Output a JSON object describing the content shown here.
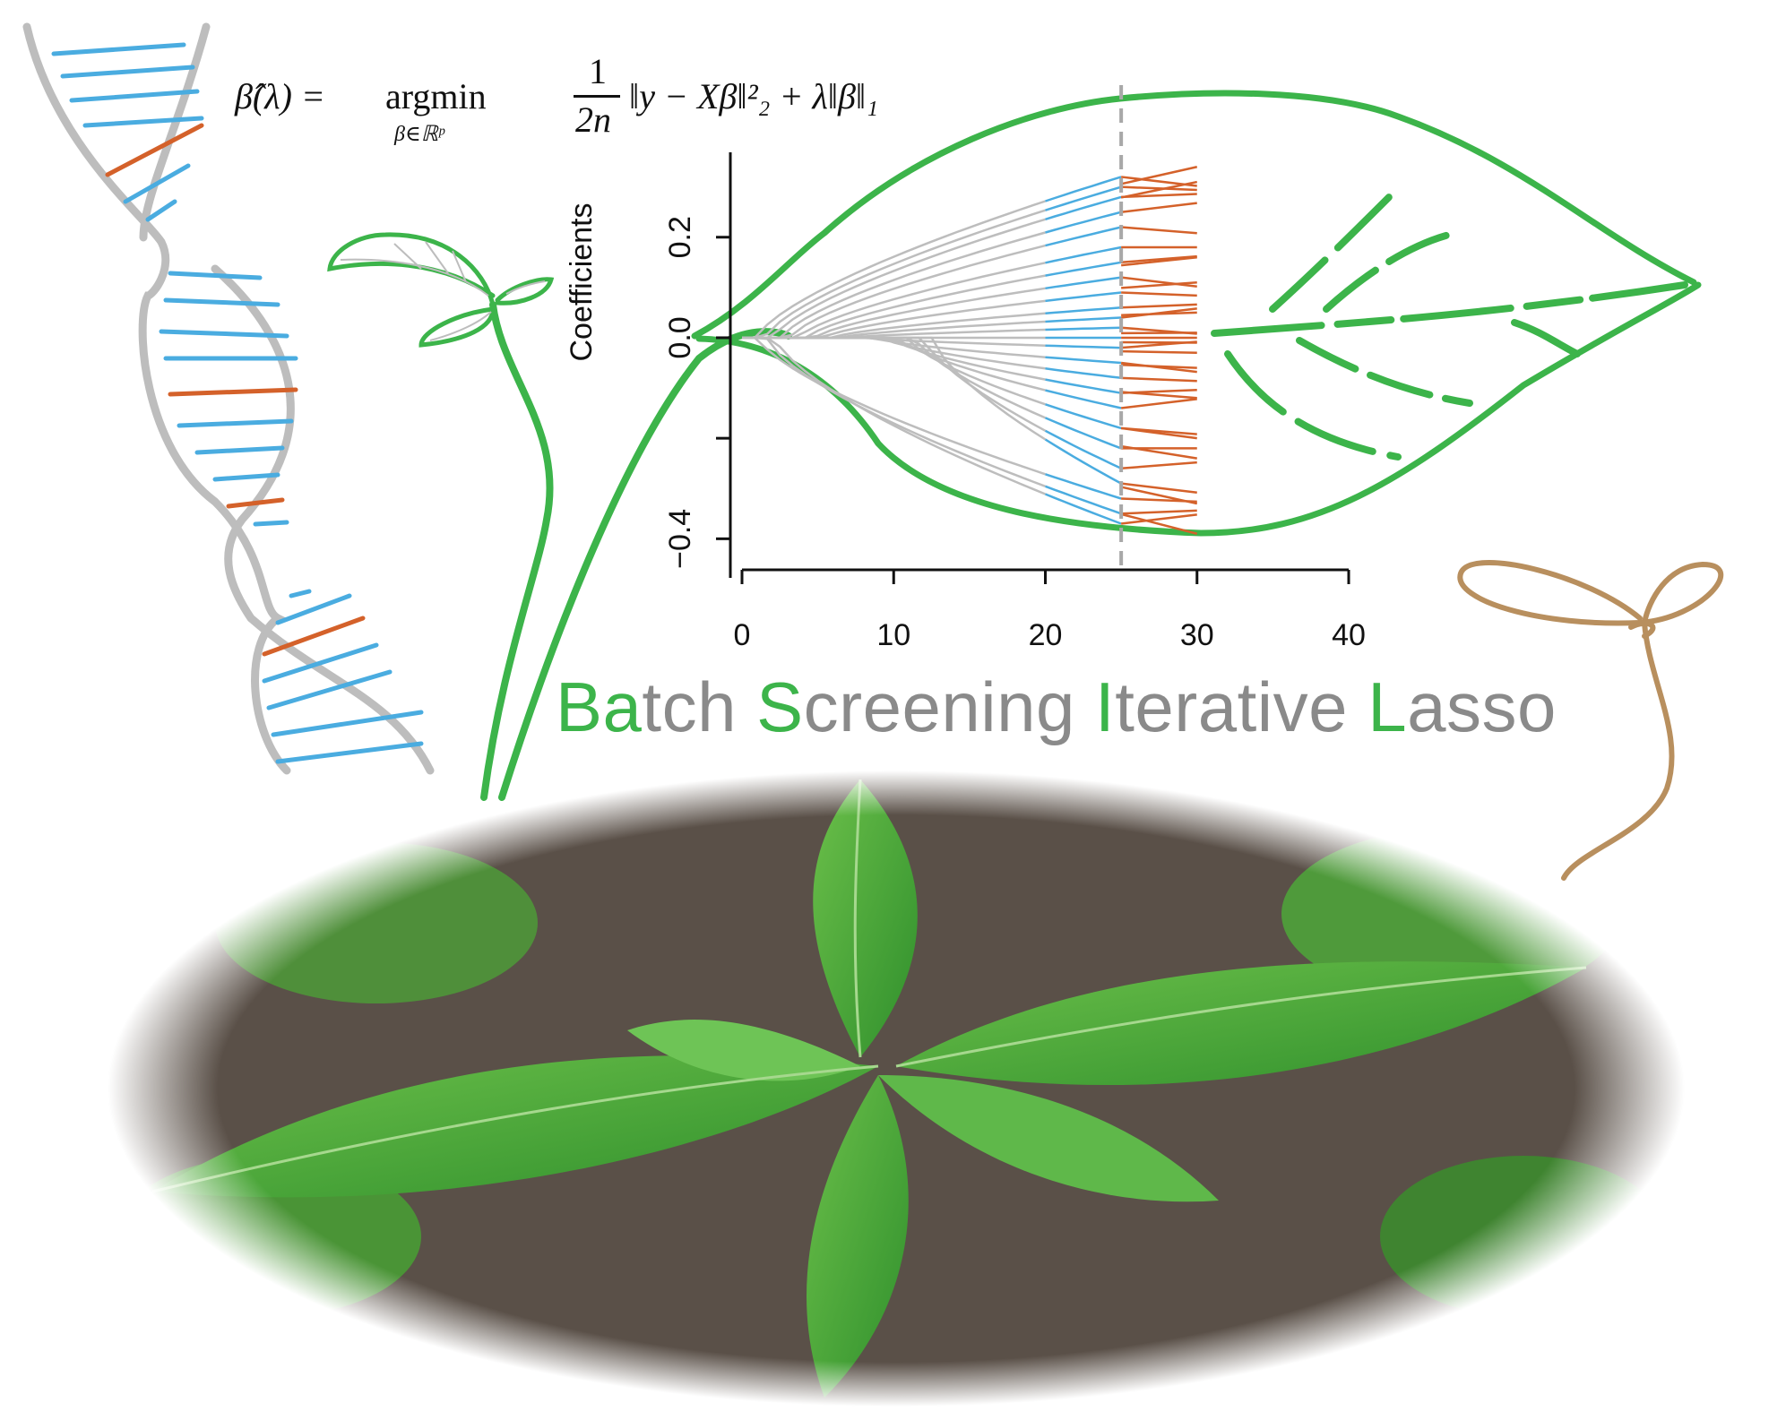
{
  "formula": {
    "lhs": "β̂(λ) =",
    "operator": "argmin",
    "subscript": "β∈ℝᵖ",
    "fraction_numerator": "1",
    "fraction_denominator": "2n",
    "objective": "‖y − Xβ‖²₂ + λ‖β‖₁"
  },
  "title": {
    "words": [
      {
        "highlight": "Ba",
        "rest": "tch"
      },
      {
        "highlight": "S",
        "rest": "creening"
      },
      {
        "highlight": "I",
        "rest": "terative"
      },
      {
        "highlight": "L",
        "rest": "asso"
      }
    ]
  },
  "colors": {
    "green": "#3cb44a",
    "gray_text": "#8a8a8a",
    "path_gray": "#bdbdbd",
    "path_blue": "#4aace0",
    "path_orange": "#d4612a",
    "dna_gray": "#b8b8b8",
    "seedling_brown": "#b88f5e",
    "leaf_photo": "#49a83a"
  },
  "chart_data": {
    "type": "line",
    "ylabel": "Coefficients",
    "xlabel": "",
    "xlim": [
      0,
      40
    ],
    "ylim": [
      -0.46,
      0.36
    ],
    "x_ticks": [
      0,
      10,
      20,
      30,
      40
    ],
    "y_ticks": [
      -0.4,
      0.0,
      0.2
    ],
    "y_tick_labels": [
      "−0.4",
      "0.0",
      "0.2"
    ],
    "dashed_vline_x": 25,
    "segments": [
      {
        "name": "",
        "from": 0,
        "to": 20,
        "color": "gray"
      },
      {
        "name": "",
        "from": 20,
        "to": 25,
        "color": "blue"
      },
      {
        "name": "",
        "from": 25,
        "to": 30,
        "color": "orange"
      }
    ],
    "coefficient_endpoints": [
      0.32,
      0.3,
      0.28,
      0.25,
      0.22,
      0.18,
      0.15,
      0.12,
      0.09,
      0.06,
      0.04,
      0.02,
      0.0,
      -0.02,
      -0.05,
      -0.08,
      -0.11,
      -0.14,
      -0.18,
      -0.22,
      -0.26,
      -0.29,
      -0.32,
      -0.35,
      -0.37
    ]
  },
  "photo": {
    "icon": "basil-plant-photo"
  }
}
